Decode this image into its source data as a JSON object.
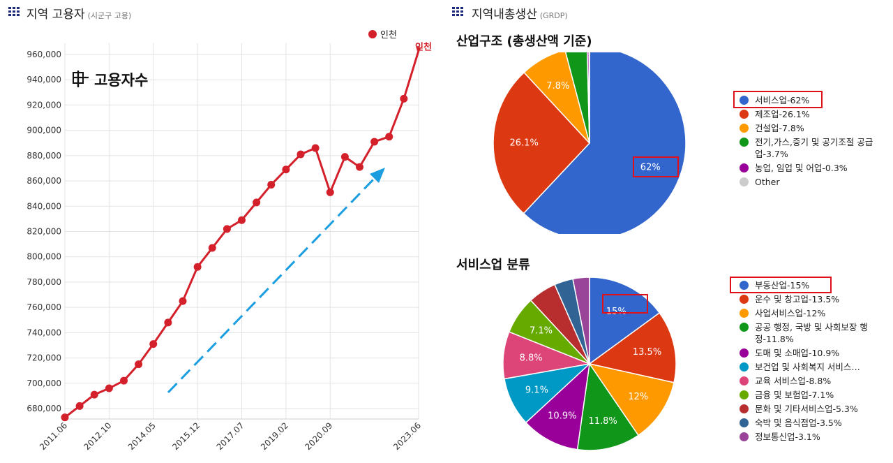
{
  "left_section": {
    "title": "지역 고용자",
    "subtitle": "(시군구 고용)"
  },
  "right_section": {
    "title": "지역내총생산",
    "subtitle": "(GRDP)"
  },
  "colors": {
    "line": "#d3202a",
    "arrow": "#1a9ee0",
    "highlight": "#e0101a",
    "icon": "#1e2a7a"
  },
  "chart_data": [
    {
      "type": "line",
      "title": "고용자수",
      "legend": "인천",
      "end_label": "인천",
      "legend_position": "top-right",
      "grid": true,
      "ylim": [
        670000,
        970000
      ],
      "yticks": [
        "680,000",
        "700,000",
        "720,000",
        "740,000",
        "760,000",
        "780,000",
        "800,000",
        "820,000",
        "840,000",
        "860,000",
        "880,000",
        "900,000",
        "920,000",
        "940,000",
        "960,000"
      ],
      "xtick_labels": [
        "2011.06",
        "2012.10",
        "2014.05",
        "2015.12",
        "2017.07",
        "2019.02",
        "2020.09",
        "2023.06"
      ],
      "series": [
        {
          "name": "인천",
          "values": [
            673000,
            682000,
            691000,
            696000,
            702000,
            715000,
            731000,
            748000,
            765000,
            792000,
            807000,
            822000,
            829000,
            843000,
            857000,
            869000,
            881000,
            886000,
            851000,
            879000,
            871000,
            891000,
            895000,
            925000,
            963000
          ]
        }
      ]
    },
    {
      "type": "pie",
      "title": "산업구조 (총생산액 기준)",
      "slices": [
        {
          "label": "서비스업-62%",
          "value": 62,
          "text": "62%",
          "color": "#3366cc"
        },
        {
          "label": "제조업-26.1%",
          "value": 26.1,
          "text": "26.1%",
          "color": "#dc3912"
        },
        {
          "label": "건설업-7.8%",
          "value": 7.8,
          "text": "7.8%",
          "color": "#ff9900"
        },
        {
          "label": "전기,가스,증기 및 공기조절 공급업-3.7%",
          "value": 3.7,
          "text": "",
          "color": "#109618"
        },
        {
          "label": "농업, 임업 및 어업-0.3%",
          "value": 0.3,
          "text": "",
          "color": "#990099"
        },
        {
          "label": "Other",
          "value": 0.1,
          "text": "",
          "color": "#cccccc"
        }
      ]
    },
    {
      "type": "pie",
      "title": "서비스업 분류",
      "slices": [
        {
          "label": "부동산업-15%",
          "value": 15,
          "text": "15%",
          "color": "#3366cc"
        },
        {
          "label": "운수 및 창고업-13.5%",
          "value": 13.5,
          "text": "13.5%",
          "color": "#dc3912"
        },
        {
          "label": "사업서비스업-12%",
          "value": 12,
          "text": "12%",
          "color": "#ff9900"
        },
        {
          "label": "공공 행정, 국방 및 사회보장 행정-11.8%",
          "value": 11.8,
          "text": "11.8%",
          "color": "#109618"
        },
        {
          "label": "도매 및 소매업-10.9%",
          "value": 10.9,
          "text": "10.9%",
          "color": "#990099"
        },
        {
          "label": "보건업 및 사회복지 서비스…",
          "value": 9.1,
          "text": "9.1%",
          "color": "#0099c6"
        },
        {
          "label": "교육 서비스업-8.8%",
          "value": 8.8,
          "text": "8.8%",
          "color": "#dd4477"
        },
        {
          "label": "금융 및 보험업-7.1%",
          "value": 7.1,
          "text": "7.1%",
          "color": "#66aa00"
        },
        {
          "label": "문화 및 기타서비스업-5.3%",
          "value": 5.3,
          "text": "",
          "color": "#b82e2e"
        },
        {
          "label": "숙박 및 음식점업-3.5%",
          "value": 3.5,
          "text": "",
          "color": "#316395"
        },
        {
          "label": "정보통신업-3.1%",
          "value": 3.1,
          "text": "",
          "color": "#994499"
        }
      ]
    }
  ]
}
